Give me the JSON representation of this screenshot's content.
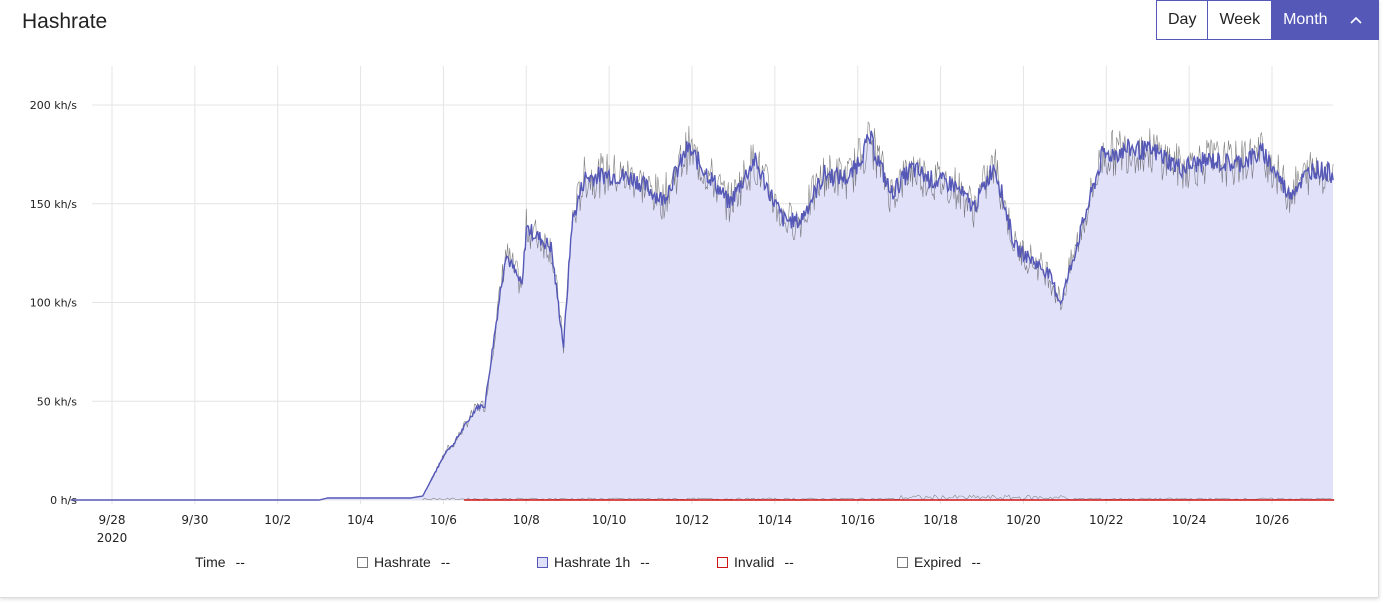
{
  "header": {
    "title": "Hashrate",
    "range_buttons": [
      {
        "label": "Day",
        "active": false
      },
      {
        "label": "Week",
        "active": false
      },
      {
        "label": "Month",
        "active": true
      }
    ],
    "collapse_icon": "chevron-up-icon"
  },
  "legend": {
    "time": {
      "label": "Time",
      "value": "--"
    },
    "items": [
      {
        "label": "Hashrate",
        "value": "--",
        "color": "#777777",
        "fill": "none"
      },
      {
        "label": "Hashrate 1h",
        "value": "--",
        "color": "#5558b7",
        "fill": "#dfe0fa"
      },
      {
        "label": "Invalid",
        "value": "--",
        "color": "#d01414",
        "fill": "none"
      },
      {
        "label": "Expired",
        "value": "--",
        "color": "#777777",
        "fill": "none"
      }
    ]
  },
  "chart_data": {
    "type": "area",
    "title": "",
    "xlabel": "",
    "ylabel": "",
    "x_ticks": [
      "9/28",
      "9/30",
      "10/2",
      "10/4",
      "10/6",
      "10/8",
      "10/10",
      "10/12",
      "10/14",
      "10/16",
      "10/18",
      "10/20",
      "10/22",
      "10/24",
      "10/26"
    ],
    "x_tick_year": "2020",
    "y_ticks": [
      "0  h/s",
      "50 kh/s",
      "100 kh/s",
      "150 kh/s",
      "200 kh/s"
    ],
    "ylim": [
      0,
      220
    ],
    "xlim": [
      "2020-09-27",
      "2020-10-27"
    ],
    "grid": true,
    "colors": {
      "hashrate_1h_line": "#5558b7",
      "hashrate_1h_fill": "#dfe0fa",
      "hashrate_line": "#555555",
      "invalid_line": "#d01414",
      "expired_line": "#888888"
    },
    "series": [
      {
        "name": "Hashrate 1h",
        "x": [
          "2020-09-27",
          "2020-10-03",
          "2020-10-03.2",
          "2020-10-05.2",
          "2020-10-05.5",
          "2020-10-05.7",
          "2020-10-06.1",
          "2020-10-06.2",
          "2020-10-06.8",
          "2020-10-07.0",
          "2020-10-07.5",
          "2020-10-07.9",
          "2020-10-08.0",
          "2020-10-08.6",
          "2020-10-08.9",
          "2020-10-09.1",
          "2020-10-09.4",
          "2020-10-10.0",
          "2020-10-10.6",
          "2020-10-11.3",
          "2020-10-11.9",
          "2020-10-12.5",
          "2020-10-12.9",
          "2020-10-13.5",
          "2020-10-14.2",
          "2020-10-14.6",
          "2020-10-15.2",
          "2020-10-15.8",
          "2020-10-16.3",
          "2020-10-16.8",
          "2020-10-17.3",
          "2020-10-17.8",
          "2020-10-18.3",
          "2020-10-18.8",
          "2020-10-19.3",
          "2020-10-19.8",
          "2020-10-20.3",
          "2020-10-20.6",
          "2020-10-20.9",
          "2020-10-21.3",
          "2020-10-21.9",
          "2020-10-22.6",
          "2020-10-23.2",
          "2020-10-23.8",
          "2020-10-24.5",
          "2020-10-25.1",
          "2020-10-25.8",
          "2020-10-26.4",
          "2020-10-27.0",
          "2020-10-27.5"
        ],
        "values": [
          0,
          0,
          1,
          1,
          2,
          10,
          26,
          27,
          47,
          48,
          125,
          108,
          138,
          128,
          78,
          140,
          163,
          165,
          163,
          152,
          178,
          162,
          150,
          172,
          142,
          141,
          165,
          163,
          183,
          155,
          168,
          162,
          160,
          148,
          170,
          128,
          120,
          115,
          100,
          130,
          174,
          178,
          176,
          168,
          172,
          170,
          176,
          155,
          168,
          165
        ]
      },
      {
        "name": "Invalid",
        "x": [
          "2020-09-27",
          "2020-10-27.5"
        ],
        "values": [
          0,
          0
        ]
      },
      {
        "name": "Expired",
        "x": [
          "2020-09-27",
          "2020-10-27.5"
        ],
        "values": [
          0,
          0
        ]
      }
    ]
  }
}
